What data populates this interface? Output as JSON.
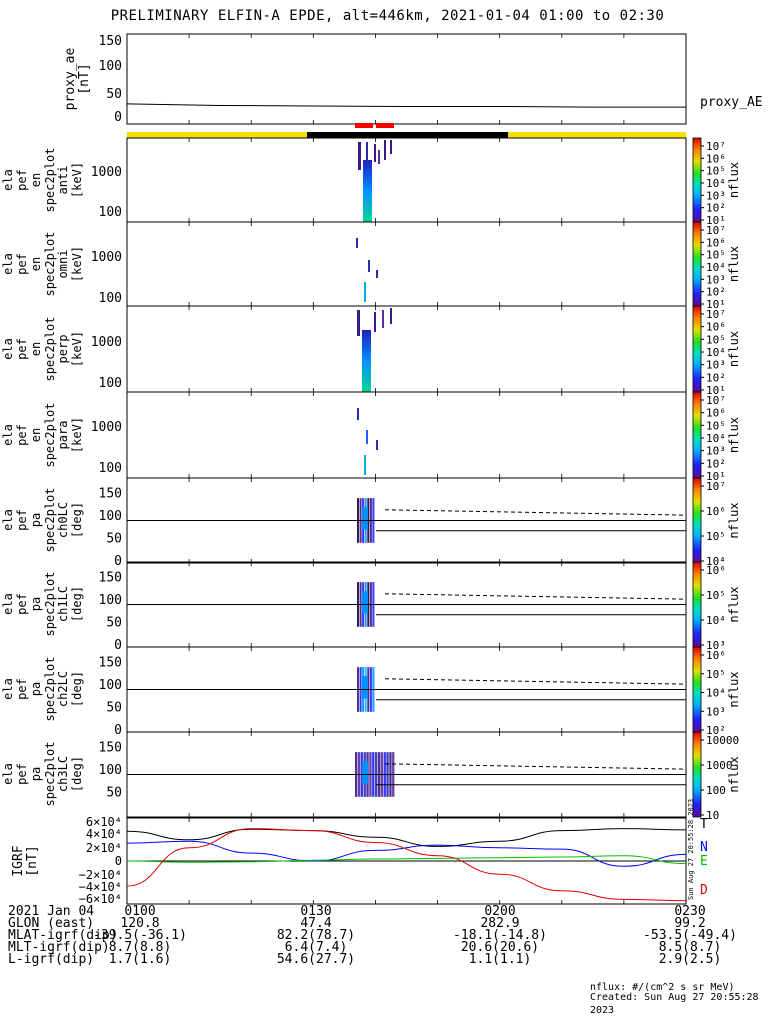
{
  "title": "PRELIMINARY ELFIN-A EPDE, alt=446km, 2021-01-04 01:00 to 02:30",
  "colors": {
    "trace": "#000000",
    "day_bar": "#f6e000",
    "night_bar": "#000000",
    "sci_marker": "#ff0000",
    "geo_T": "#000000",
    "geo_N": "#0000ff",
    "geo_E": "#00c000",
    "geo_D": "#e00000"
  },
  "panels": {
    "ae": {
      "ylabel1": "proxy_ae",
      "ylabel2": "[nT]",
      "ticks": [
        "150",
        "100",
        "50",
        "0"
      ],
      "legend": "proxy_AE"
    },
    "spec_anti": {
      "lines": [
        "ela",
        "pef",
        "en",
        "spec2plot",
        "anti",
        "[keV]"
      ],
      "ticks": [
        "1000",
        "100"
      ],
      "cbar_label": "nflux"
    },
    "spec_omni": {
      "lines": [
        "ela",
        "pef",
        "en",
        "spec2plot",
        "omni",
        "[keV]"
      ],
      "ticks": [
        "1000",
        "100"
      ],
      "cbar_label": "nflux"
    },
    "spec_perp": {
      "lines": [
        "ela",
        "pef",
        "en",
        "spec2plot",
        "perp",
        "[keV]"
      ],
      "ticks": [
        "1000",
        "100"
      ],
      "cbar_label": "nflux"
    },
    "spec_para": {
      "lines": [
        "ela",
        "pef",
        "en",
        "spec2plot",
        "para",
        "[keV]"
      ],
      "ticks": [
        "1000",
        "100"
      ],
      "cbar_label": "nflux"
    },
    "pa_ch0": {
      "lines": [
        "ela",
        "pef",
        "pa",
        "spec2plot",
        "ch0LC",
        "[deg]"
      ],
      "ticks": [
        "150",
        "100",
        "50",
        "0"
      ],
      "cbar_label": "nflux",
      "cbar_ticks": [
        "10⁷",
        "10⁶",
        "10⁵",
        "10⁴"
      ]
    },
    "pa_ch1": {
      "lines": [
        "ela",
        "pef",
        "pa",
        "spec2plot",
        "ch1LC",
        "[deg]"
      ],
      "ticks": [
        "150",
        "100",
        "50",
        "0"
      ],
      "cbar_label": "nflux",
      "cbar_ticks": [
        "10⁶",
        "10⁵",
        "10⁴",
        "10³"
      ]
    },
    "pa_ch2": {
      "lines": [
        "ela",
        "pef",
        "pa",
        "spec2plot",
        "ch2LC",
        "[deg]"
      ],
      "ticks": [
        "150",
        "100",
        "50",
        "0"
      ],
      "cbar_label": "nflux",
      "cbar_ticks": [
        "10⁶",
        "10⁵",
        "10⁴",
        "10³",
        "10²"
      ]
    },
    "pa_ch3": {
      "lines": [
        "ela",
        "pef",
        "pa",
        "spec2plot",
        "ch3LC",
        "[deg]"
      ],
      "ticks": [
        "150",
        "100",
        "50"
      ],
      "cbar_label": "nflux",
      "cbar_ticks": [
        "10000",
        "1000",
        "100",
        "10"
      ]
    },
    "igrf": {
      "ylabel1": "IGRF",
      "ylabel2": "[nT]",
      "ticks": [
        "6×10⁴",
        "4×10⁴",
        "2×10⁴",
        "0",
        "−2×10⁴",
        "−4×10⁴",
        "−6×10⁴"
      ],
      "legend": [
        "T",
        "N",
        "E",
        "D"
      ],
      "stamp": "Sun Aug 27 20:55:28 2023"
    }
  },
  "energy_cbar_ticks": [
    "10⁷",
    "10⁶",
    "10⁵",
    "10⁴",
    "10³",
    "10²",
    "10¹"
  ],
  "footer": {
    "rows": [
      {
        "label": "2021 Jan 04",
        "values": [
          "0100",
          "0130",
          "0200",
          "0230"
        ]
      },
      {
        "label": "GLON (east)",
        "values": [
          "120.8",
          "47.4",
          "282.9",
          "99.2"
        ]
      },
      {
        "label": "MLAT-igrf(dip)",
        "values": [
          "-39.5(-36.1)",
          "82.2(78.7)",
          "-18.1(-14.8)",
          "-53.5(-49.4)"
        ]
      },
      {
        "label": "MLT-igrf(dip)",
        "values": [
          "8.7(8.8)",
          "6.4(7.4)",
          "20.6(20.6)",
          "8.5(8.7)"
        ]
      },
      {
        "label": "L-igrf(dip)",
        "values": [
          "1.7(1.6)",
          "54.6(27.7)",
          "1.1(1.1)",
          "2.9(2.5)"
        ]
      }
    ],
    "units_line": "nflux: #/(cm^2 s sr MeV)",
    "created_line": "Created: Sun Aug 27 20:55:28 2023"
  },
  "chart_data": {
    "type": "line",
    "x_axis": {
      "label": "2021 Jan 04",
      "ticks": [
        "0100",
        "0130",
        "0200",
        "0230"
      ],
      "range": [
        "01:00",
        "02:30"
      ]
    },
    "proxy_ae": {
      "ylabel": "proxy_ae [nT]",
      "ylim": [
        -10,
        160
      ],
      "x": [
        "01:00",
        "01:15",
        "01:30",
        "01:45",
        "02:00",
        "02:15",
        "02:30"
      ],
      "values": [
        28,
        25,
        24,
        23,
        23,
        22,
        22
      ],
      "series_name": "proxy_AE"
    },
    "spectrograms": [
      {
        "name": "ela pef en spec2plot anti",
        "ylabel": "[keV]",
        "y_scale": "log",
        "ylim": [
          60,
          7000
        ],
        "cbar": "nflux",
        "cbar_range": [
          "10¹",
          "10⁷"
        ],
        "active_window": [
          "01:39",
          "01:46"
        ]
      },
      {
        "name": "ela pef en spec2plot omni",
        "ylabel": "[keV]",
        "y_scale": "log",
        "ylim": [
          60,
          7000
        ],
        "cbar": "nflux",
        "cbar_range": [
          "10¹",
          "10⁷"
        ],
        "active_window": [
          "01:39",
          "01:43"
        ]
      },
      {
        "name": "ela pef en spec2plot perp",
        "ylabel": "[keV]",
        "y_scale": "log",
        "ylim": [
          60,
          7000
        ],
        "cbar": "nflux",
        "cbar_range": [
          "10¹",
          "10⁷"
        ],
        "active_window": [
          "01:39",
          "01:46"
        ]
      },
      {
        "name": "ela pef en spec2plot para",
        "ylabel": "[keV]",
        "y_scale": "log",
        "ylim": [
          60,
          7000
        ],
        "cbar": "nflux",
        "cbar_range": [
          "10¹",
          "10⁷"
        ],
        "active_window": [
          "01:39",
          "01:43"
        ]
      },
      {
        "name": "ela pef pa spec2plot ch0LC",
        "ylabel": "[deg]",
        "ylim": [
          -5,
          185
        ],
        "cbar": "nflux",
        "active_window": [
          "01:39",
          "01:43"
        ]
      },
      {
        "name": "ela pef pa spec2plot ch1LC",
        "ylabel": "[deg]",
        "ylim": [
          -5,
          185
        ],
        "cbar": "nflux",
        "active_window": [
          "01:39",
          "01:43"
        ]
      },
      {
        "name": "ela pef pa spec2plot ch2LC",
        "ylabel": "[deg]",
        "ylim": [
          -5,
          185
        ],
        "cbar": "nflux",
        "active_window": [
          "01:39",
          "01:43"
        ]
      },
      {
        "name": "ela pef pa spec2plot ch3LC",
        "ylabel": "[deg]",
        "ylim": [
          -5,
          185
        ],
        "cbar": "nflux",
        "active_window": [
          "01:39",
          "01:46"
        ]
      }
    ],
    "pa_reference_lines": {
      "upper_deg": 90,
      "lower_deg": 67,
      "dashed_start_deg": 114,
      "dashed_end_deg": 102
    },
    "igrf": {
      "ylabel": "IGRF [nT]",
      "ylim": [
        -65000,
        65000
      ],
      "x": [
        "01:00",
        "01:10",
        "01:20",
        "01:30",
        "01:40",
        "01:50",
        "02:00",
        "02:10",
        "02:20",
        "02:30"
      ],
      "series": [
        {
          "name": "T",
          "values": [
            45000,
            32000,
            48000,
            46000,
            36000,
            22000,
            30000,
            46000,
            49000,
            47000
          ]
        },
        {
          "name": "N",
          "values": [
            27000,
            30000,
            12000,
            0,
            16000,
            24000,
            20000,
            18000,
            -8000,
            10000
          ]
        },
        {
          "name": "E",
          "values": [
            0,
            -2000,
            -1000,
            1000,
            3000,
            4000,
            5000,
            6000,
            8000,
            -4000
          ]
        },
        {
          "name": "D",
          "values": [
            -38000,
            20000,
            49000,
            46000,
            28000,
            8000,
            -20000,
            -45000,
            -58000,
            -60000
          ]
        }
      ]
    }
  }
}
